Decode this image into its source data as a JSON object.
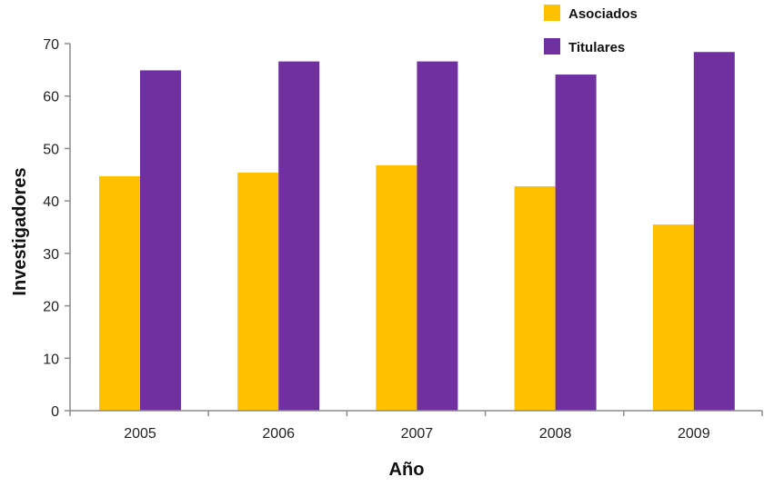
{
  "chart_data": {
    "type": "bar",
    "categories": [
      "2005",
      "2006",
      "2007",
      "2008",
      "2009"
    ],
    "series": [
      {
        "name": "Asociados",
        "color": "#FFC000",
        "values": [
          44.7,
          45.4,
          46.8,
          42.8,
          35.5
        ]
      },
      {
        "name": "Titulares",
        "color": "#7030A0",
        "values": [
          64.9,
          66.6,
          66.6,
          64.1,
          68.4
        ]
      }
    ],
    "xlabel": "Año",
    "ylabel": "Investigadores",
    "ylim": [
      0,
      70
    ],
    "yticks": [
      0,
      10,
      20,
      30,
      40,
      50,
      60,
      70
    ],
    "grid": false,
    "legend_position": "top-right"
  }
}
